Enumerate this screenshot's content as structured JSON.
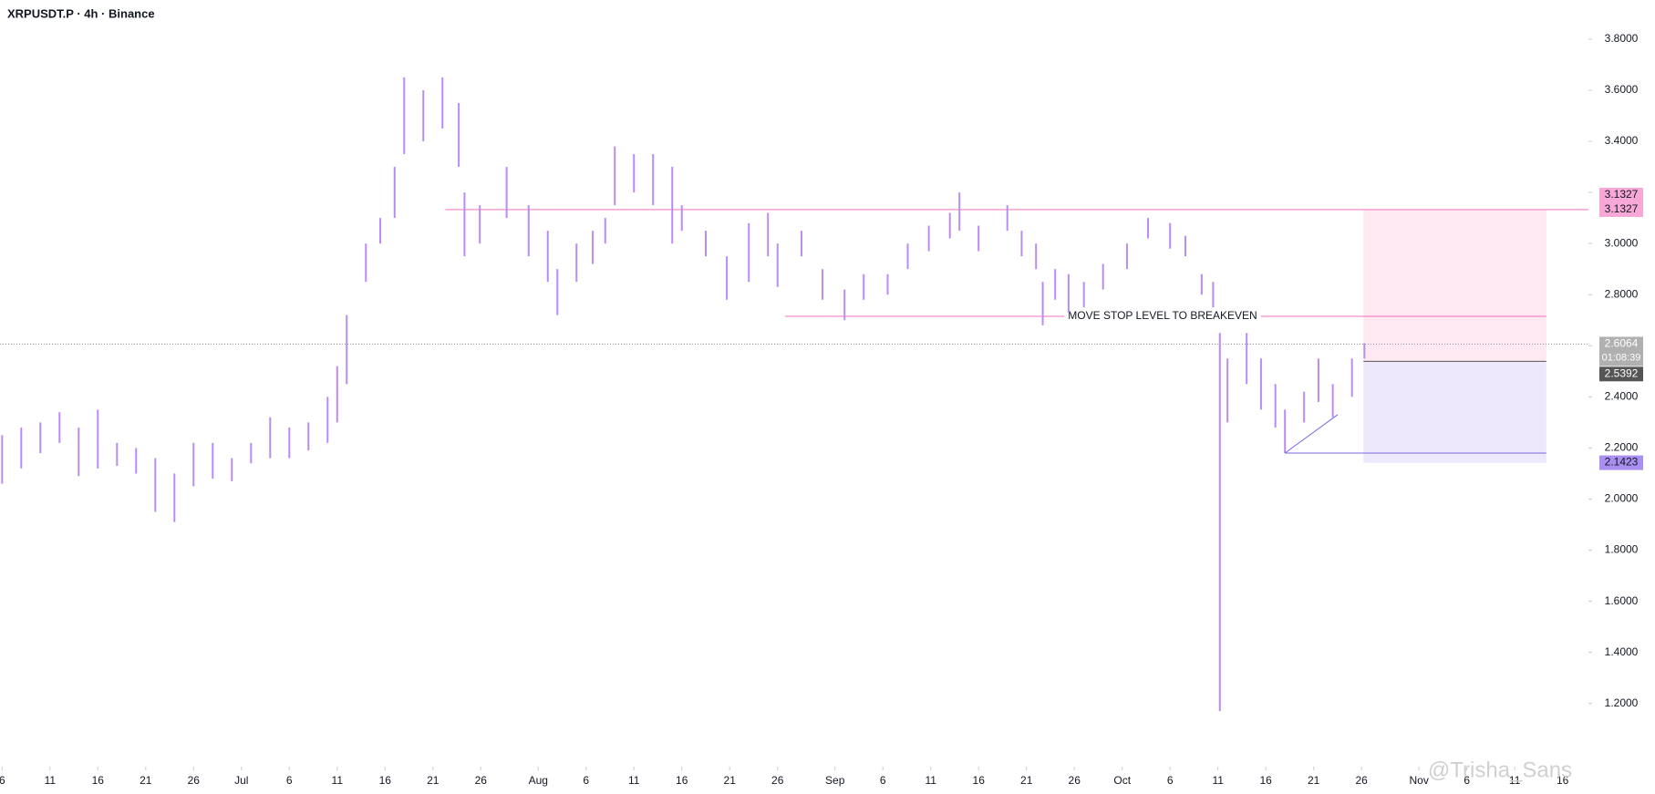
{
  "chart_data": {
    "type": "ohlc",
    "title": "XRPUSDT.P · 4h · Binance",
    "color": "#b98cf2",
    "x": [
      6,
      8,
      10,
      12,
      14,
      16,
      18,
      20,
      22,
      24,
      26,
      28,
      30,
      32,
      34,
      36,
      38,
      40,
      41,
      42,
      44,
      45.5,
      47,
      48,
      50,
      52,
      53.7,
      54.3,
      55.9,
      58.7,
      61,
      63,
      64,
      66,
      67.7,
      69,
      70,
      72,
      74,
      76,
      77,
      79.5,
      81.7,
      84,
      86,
      87,
      89.5,
      91.7,
      94,
      96,
      98.5,
      100.6,
      102.8,
      105,
      106,
      108,
      111,
      112.5,
      114,
      114.7,
      116,
      117.4,
      119,
      121,
      123.5,
      125.7,
      128,
      129.6,
      131.3,
      132.5,
      133.2,
      134,
      136,
      137.5,
      139,
      140,
      142,
      143.5,
      145,
      147,
      148.3
    ],
    "high": [
      2.25,
      2.28,
      2.3,
      2.34,
      2.28,
      2.35,
      2.22,
      2.2,
      2.16,
      2.1,
      2.22,
      2.22,
      2.16,
      2.22,
      2.32,
      2.28,
      2.3,
      2.4,
      2.52,
      2.72,
      3.0,
      3.1,
      3.3,
      3.65,
      3.6,
      3.65,
      3.55,
      3.2,
      3.15,
      3.3,
      3.15,
      3.05,
      2.9,
      3.0,
      3.05,
      3.1,
      3.38,
      3.35,
      3.35,
      3.3,
      3.15,
      3.05,
      2.95,
      3.08,
      3.12,
      3.0,
      3.05,
      2.9,
      2.82,
      2.88,
      2.88,
      3.0,
      3.07,
      3.12,
      3.2,
      3.07,
      3.15,
      3.05,
      3.0,
      2.85,
      2.9,
      2.88,
      2.85,
      2.92,
      3.0,
      3.1,
      3.08,
      3.03,
      2.88,
      2.85,
      2.65,
      2.55,
      2.65,
      2.55,
      2.45,
      2.35,
      2.42,
      2.55,
      2.45,
      2.55,
      2.61
    ],
    "low": [
      2.06,
      2.12,
      2.18,
      2.22,
      2.09,
      2.12,
      2.13,
      2.1,
      1.95,
      1.91,
      2.05,
      2.08,
      2.07,
      2.14,
      2.16,
      2.16,
      2.19,
      2.22,
      2.3,
      2.45,
      2.85,
      3.0,
      3.1,
      3.35,
      3.4,
      3.45,
      3.3,
      2.95,
      3.0,
      3.1,
      2.95,
      2.85,
      2.72,
      2.85,
      2.92,
      3.0,
      3.15,
      3.2,
      3.15,
      3.0,
      3.05,
      2.95,
      2.78,
      2.85,
      2.95,
      2.83,
      2.95,
      2.78,
      2.7,
      2.78,
      2.8,
      2.9,
      2.97,
      3.02,
      3.05,
      2.97,
      3.05,
      2.95,
      2.9,
      2.68,
      2.78,
      2.73,
      2.75,
      2.82,
      2.9,
      3.02,
      2.98,
      2.95,
      2.8,
      2.75,
      1.17,
      2.3,
      2.45,
      2.35,
      2.28,
      2.18,
      2.3,
      2.38,
      2.32,
      2.4,
      2.55
    ],
    "xlim": [
      5.78,
      171.7
    ],
    "ylim": [
      0.96,
      3.953
    ],
    "xticks": [
      {
        "value": 6,
        "label": "6"
      },
      {
        "value": 11,
        "label": "11"
      },
      {
        "value": 16,
        "label": "16"
      },
      {
        "value": 21,
        "label": "21"
      },
      {
        "value": 26,
        "label": "26"
      },
      {
        "value": 31,
        "label": "Jul"
      },
      {
        "value": 36,
        "label": "6"
      },
      {
        "value": 41,
        "label": "11"
      },
      {
        "value": 46,
        "label": "16"
      },
      {
        "value": 51,
        "label": "21"
      },
      {
        "value": 56,
        "label": "26"
      },
      {
        "value": 62,
        "label": "Aug"
      },
      {
        "value": 67,
        "label": "6"
      },
      {
        "value": 72,
        "label": "11"
      },
      {
        "value": 77,
        "label": "16"
      },
      {
        "value": 82,
        "label": "21"
      },
      {
        "value": 87,
        "label": "26"
      },
      {
        "value": 93,
        "label": "Sep"
      },
      {
        "value": 98,
        "label": "6"
      },
      {
        "value": 103,
        "label": "11"
      },
      {
        "value": 108,
        "label": "16"
      },
      {
        "value": 113,
        "label": "21"
      },
      {
        "value": 118,
        "label": "26"
      },
      {
        "value": 123,
        "label": "Oct"
      },
      {
        "value": 128,
        "label": "6"
      },
      {
        "value": 133,
        "label": "11"
      },
      {
        "value": 138,
        "label": "16"
      },
      {
        "value": 143,
        "label": "21"
      },
      {
        "value": 148,
        "label": "26"
      },
      {
        "value": 154,
        "label": "Nov"
      },
      {
        "value": 159,
        "label": "6"
      },
      {
        "value": 164,
        "label": "11"
      },
      {
        "value": 169,
        "label": "16"
      }
    ],
    "yticks": [
      {
        "value": 1.2,
        "label": "1.2000"
      },
      {
        "value": 1.4,
        "label": "1.4000"
      },
      {
        "value": 1.6,
        "label": "1.6000"
      },
      {
        "value": 1.8,
        "label": "1.8000"
      },
      {
        "value": 2.0,
        "label": "2.0000"
      },
      {
        "value": 2.2,
        "label": "2.2000"
      },
      {
        "value": 2.4,
        "label": "2.4000"
      },
      {
        "value": 2.6,
        "label": "2.6000"
      },
      {
        "value": 2.8,
        "label": "2.8000"
      },
      {
        "value": 3.0,
        "label": "3.0000"
      },
      {
        "value": 3.2,
        "label": "3.2000"
      },
      {
        "value": 3.4,
        "label": "3.4000"
      },
      {
        "value": 3.6,
        "label": "3.6000"
      },
      {
        "value": 3.8,
        "label": "3.8000"
      }
    ],
    "resistance": 3.1327,
    "resistance_start": 52.3,
    "breakeven": 2.715,
    "breakeven_start": 87.8,
    "breakeven_label": "MOVE STOP LEVEL TO BREAKEVEN",
    "position": {
      "start": 148.2,
      "end": 167.3,
      "target": 3.1327,
      "entry": 2.5392,
      "stop": 2.1423
    },
    "trendline": {
      "x": [
        140,
        145.5
      ],
      "y": [
        2.18,
        2.33
      ]
    },
    "last_price": 2.6064,
    "countdown": "01:08:39",
    "watermark": "@Trisha_Sans"
  }
}
